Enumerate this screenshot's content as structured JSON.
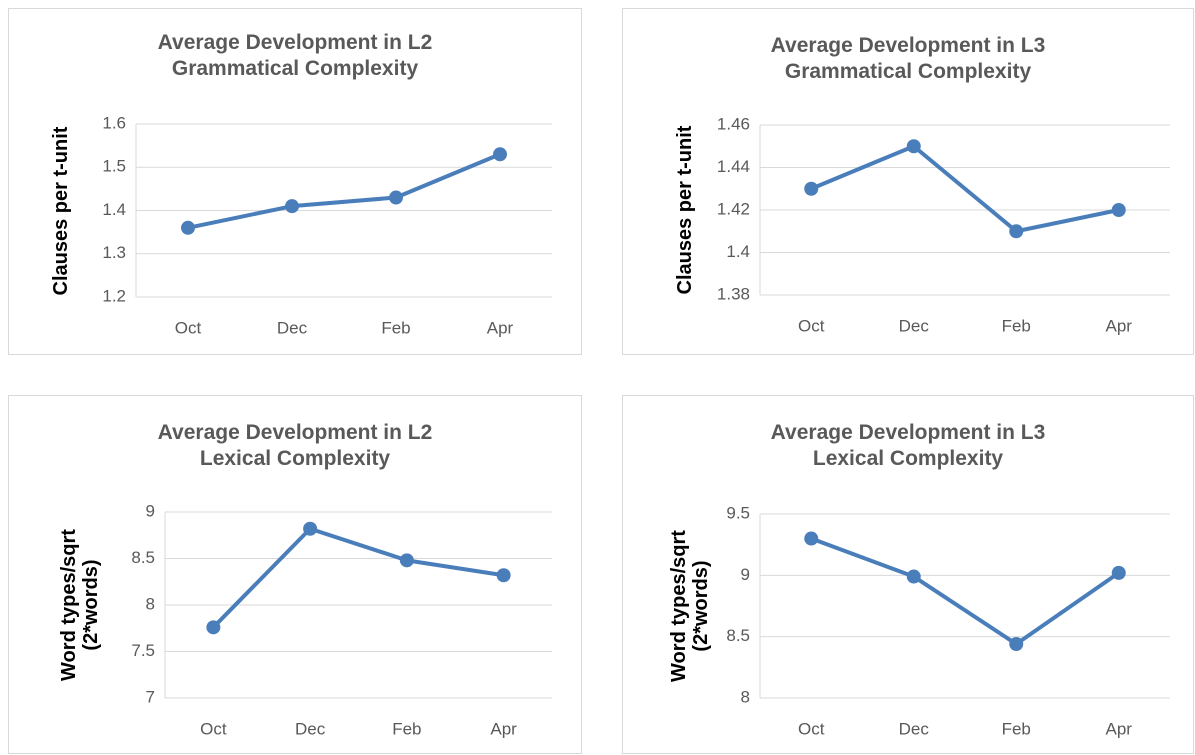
{
  "chart_data": [
    {
      "type": "line",
      "title": "Average Development in L2 Grammatical Complexity",
      "y_label": "Clauses per t-unit",
      "categories": [
        "Oct",
        "Dec",
        "Feb",
        "Apr"
      ],
      "values": [
        1.36,
        1.41,
        1.43,
        1.53
      ],
      "color": "#4a7ebb",
      "ylim": [
        1.2,
        1.6
      ],
      "yticks": [
        1.2,
        1.3,
        1.4,
        1.5,
        1.6
      ],
      "grid": true
    },
    {
      "type": "line",
      "title": "Average Development in L3 Grammatical Complexity",
      "y_label": "Clauses per t-unit",
      "categories": [
        "Oct",
        "Dec",
        "Feb",
        "Apr"
      ],
      "values": [
        1.43,
        1.45,
        1.41,
        1.42
      ],
      "color": "#4a7ebb",
      "ylim": [
        1.38,
        1.46
      ],
      "yticks": [
        1.38,
        1.4,
        1.42,
        1.44,
        1.46
      ],
      "grid": true
    },
    {
      "type": "line",
      "title": "Average Development in L2 Lexical Complexity",
      "y_label": "Word types/sqrt (2*words)",
      "categories": [
        "Oct",
        "Dec",
        "Feb",
        "Apr"
      ],
      "values": [
        7.76,
        8.82,
        8.48,
        8.32
      ],
      "color": "#4a7ebb",
      "ylim": [
        7,
        9
      ],
      "yticks": [
        7,
        7.5,
        8,
        8.5,
        9
      ],
      "grid": true
    },
    {
      "type": "line",
      "title": "Average Development in L3 Lexical Complexity",
      "y_label": "Word types/sqrt (2*words)",
      "categories": [
        "Oct",
        "Dec",
        "Feb",
        "Apr"
      ],
      "values": [
        9.3,
        8.99,
        8.44,
        9.02
      ],
      "color": "#4a7ebb",
      "ylim": [
        8,
        9.5
      ],
      "yticks": [
        8,
        8.5,
        9,
        9.5
      ],
      "grid": true
    }
  ]
}
